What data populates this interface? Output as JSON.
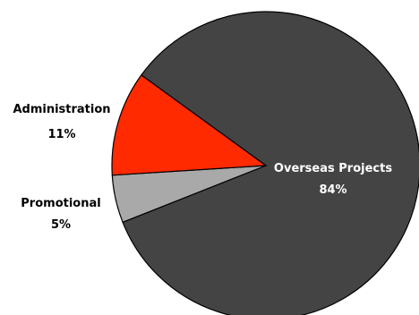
{
  "chart_data": {
    "type": "pie",
    "title": "",
    "slices": [
      {
        "label": "Overseas Projects",
        "value": 84,
        "value_label": "84%",
        "color": "#444444"
      },
      {
        "label": "Administration",
        "value": 11,
        "value_label": "11%",
        "color": "#ff2a00"
      },
      {
        "label": "Promotional",
        "value": 5,
        "value_label": "5%",
        "color": "#a9a9a9"
      }
    ],
    "label_text_color_inside": "#ffffff",
    "label_text_color_outside": "#000000",
    "stroke_color": "#000000",
    "legend": "none"
  }
}
